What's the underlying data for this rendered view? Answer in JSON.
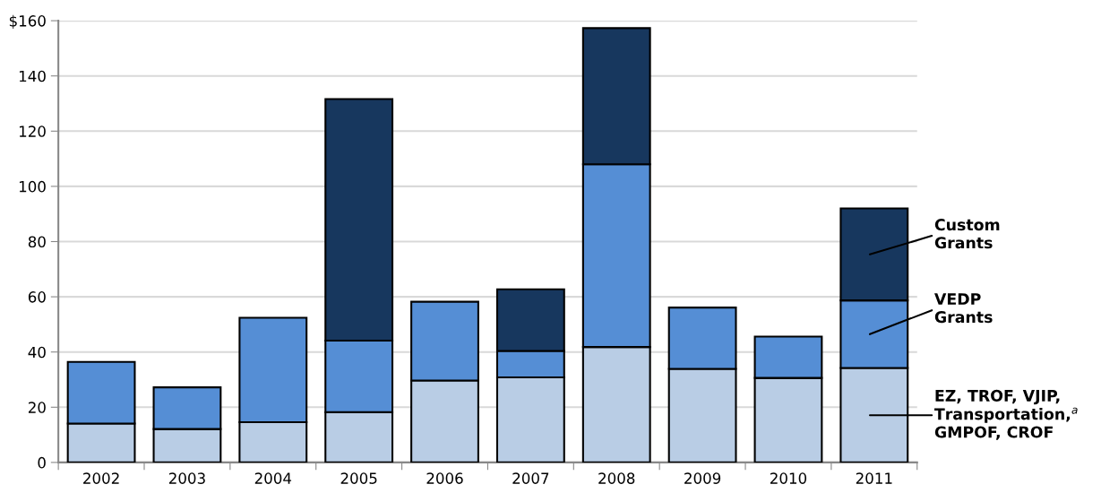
{
  "chart_data": {
    "type": "bar",
    "stacked": true,
    "categories": [
      "2002",
      "2003",
      "2004",
      "2005",
      "2006",
      "2007",
      "2008",
      "2009",
      "2010",
      "2011"
    ],
    "series": [
      {
        "name": "EZ, TROF, VJIP,\nTransportation,$^{a}$\nGMPOF, CROF",
        "color": "#b9cde5",
        "values": [
          14.1,
          12.1,
          14.6,
          18.2,
          29.7,
          30.8,
          41.8,
          33.9,
          30.6,
          34.2
        ]
      },
      {
        "name": "VEDP\nGrants",
        "color": "#558ed5",
        "values": [
          22.3,
          15.1,
          37.8,
          25.9,
          28.5,
          9.6,
          66.2,
          22.2,
          15.0,
          24.5
        ]
      },
      {
        "name": "Custom\nGrants",
        "color": "#17375e",
        "values": [
          null,
          null,
          null,
          87.5,
          null,
          22.3,
          49.3,
          null,
          null,
          33.3
        ]
      }
    ],
    "ylim": [
      0,
      160
    ],
    "yticks": [
      0,
      20,
      40,
      60,
      80,
      100,
      120,
      140,
      {
        "value": 160,
        "label": "$160"
      }
    ],
    "grid": "y",
    "legend": false
  }
}
